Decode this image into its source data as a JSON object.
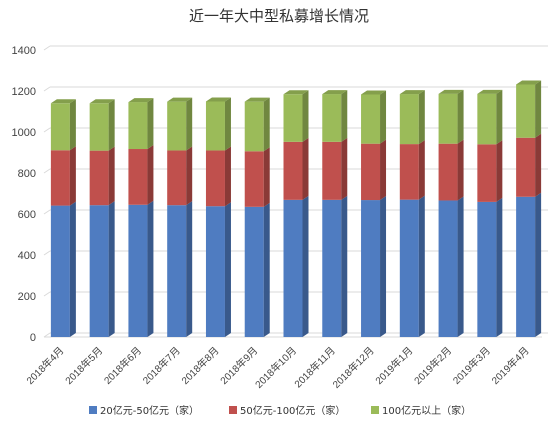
{
  "chart_data": {
    "type": "bar",
    "stacked": true,
    "title": "近一年大中型私募增长情况",
    "categories": [
      "2018年4月",
      "2018年5月",
      "2018年6月",
      "2018年7月",
      "2018年8月",
      "2018年9月",
      "2018年10月",
      "2018年11月",
      "2018年12月",
      "2019年1月",
      "2019年2月",
      "2019年3月",
      "2019年4月"
    ],
    "series": [
      {
        "name": "20亿元-50亿元（家）",
        "color": "#4F7CC1",
        "values": [
          641,
          643,
          645,
          643,
          638,
          635,
          669,
          669,
          668,
          670,
          666,
          659,
          684
        ]
      },
      {
        "name": "50亿元-100亿元（家）",
        "color": "#C0504D",
        "values": [
          270,
          266,
          272,
          267,
          272,
          271,
          283,
          283,
          275,
          271,
          277,
          281,
          288
        ]
      },
      {
        "name": "100亿元以上（家）",
        "color": "#9BBB59",
        "values": [
          229,
          231,
          229,
          238,
          239,
          242,
          232,
          233,
          240,
          244,
          243,
          246,
          260
        ]
      }
    ],
    "y_ticks": [
      "0",
      "200",
      "400",
      "600",
      "800",
      "1000",
      "1200",
      "1400"
    ],
    "ylim": [
      0,
      1400
    ],
    "grid": true,
    "legend_position": "bottom"
  }
}
